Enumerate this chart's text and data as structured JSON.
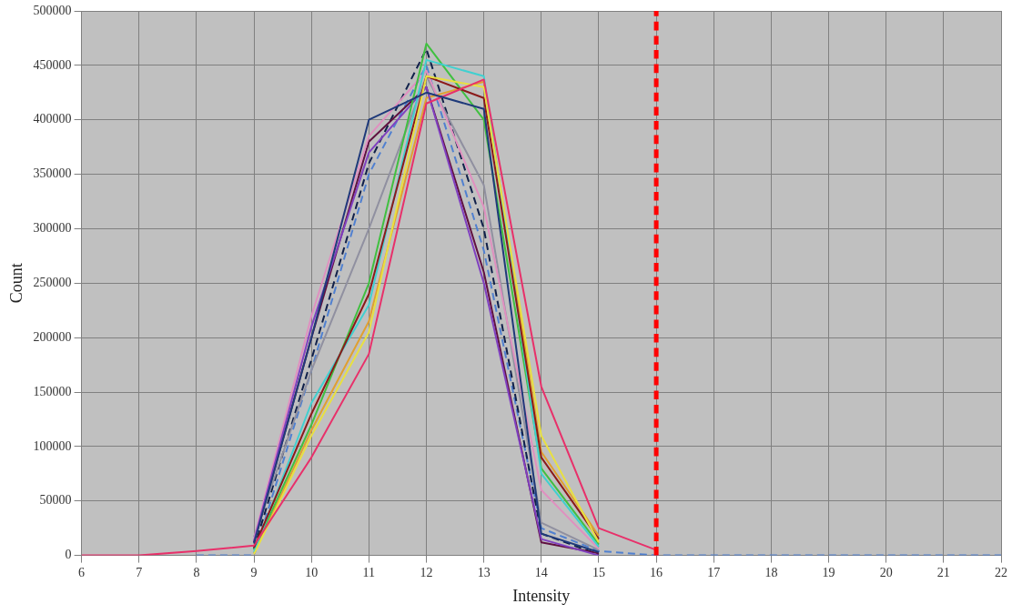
{
  "chart_data": {
    "type": "line",
    "xlabel": "Intensity",
    "ylabel": "Count",
    "x": [
      6,
      7,
      8,
      9,
      10,
      11,
      12,
      13,
      14,
      15,
      16,
      17,
      18,
      19,
      20,
      21,
      22
    ],
    "xlim": [
      6,
      22
    ],
    "xticks": [
      6,
      7,
      8,
      9,
      10,
      11,
      12,
      13,
      14,
      15,
      16,
      17,
      18,
      19,
      20,
      21,
      22
    ],
    "ylim": [
      0,
      500000
    ],
    "yticks": [
      0,
      50000,
      100000,
      150000,
      200000,
      250000,
      300000,
      350000,
      400000,
      450000,
      500000
    ],
    "grid": true,
    "legend": false,
    "marker": "none",
    "series": [
      {
        "color": "#1f3a7a",
        "values": [
          null,
          null,
          null,
          11000,
          200000,
          400000,
          425000,
          410000,
          20000,
          3000,
          null,
          null,
          null,
          null,
          null,
          null,
          null
        ]
      },
      {
        "color": "#e8306a",
        "values": [
          0,
          0,
          4000,
          9000,
          90000,
          185000,
          415000,
          437000,
          155000,
          25000,
          5000,
          null,
          null,
          null,
          null,
          null,
          null
        ]
      },
      {
        "color": "#e8e040",
        "values": [
          null,
          null,
          null,
          1000,
          110000,
          205000,
          440000,
          430000,
          110000,
          12000,
          null,
          null,
          null,
          null,
          null,
          null,
          null
        ]
      },
      {
        "color": "#8b1a1a",
        "values": [
          null,
          null,
          null,
          7000,
          130000,
          240000,
          440000,
          420000,
          90000,
          15000,
          null,
          null,
          null,
          null,
          null,
          null,
          null
        ]
      },
      {
        "color": "#40d0d0",
        "values": [
          null,
          null,
          null,
          3000,
          140000,
          230000,
          455000,
          440000,
          75000,
          8000,
          null,
          null,
          null,
          null,
          null,
          null,
          null
        ]
      },
      {
        "color": "#40c040",
        "values": [
          null,
          null,
          null,
          5000,
          120000,
          250000,
          470000,
          400000,
          80000,
          10000,
          null,
          null,
          null,
          null,
          null,
          null,
          null
        ]
      },
      {
        "color": "#8040c0",
        "values": [
          null,
          null,
          null,
          13000,
          210000,
          370000,
          430000,
          250000,
          15000,
          0,
          null,
          null,
          null,
          null,
          null,
          null,
          null
        ]
      },
      {
        "color": "#e090c0",
        "values": [
          null,
          null,
          null,
          15000,
          220000,
          385000,
          445000,
          320000,
          60000,
          6000,
          null,
          null,
          null,
          null,
          null,
          null,
          null
        ]
      },
      {
        "color": "#e0a030",
        "values": [
          null,
          null,
          null,
          2000,
          115000,
          215000,
          420000,
          435000,
          95000,
          18000,
          null,
          null,
          null,
          null,
          null,
          null,
          null
        ]
      },
      {
        "color": "#9090a0",
        "values": [
          null,
          null,
          null,
          17000,
          170000,
          300000,
          440000,
          340000,
          30000,
          5000,
          null,
          null,
          null,
          null,
          null,
          null,
          null
        ]
      },
      {
        "color": "#601040",
        "values": [
          null,
          null,
          null,
          12000,
          200000,
          380000,
          430000,
          260000,
          12000,
          2000,
          null,
          null,
          null,
          null,
          null,
          null,
          null
        ]
      },
      {
        "color": "#10204a",
        "line_style": "dashed",
        "values": [
          null,
          null,
          null,
          6000,
          180000,
          360000,
          465000,
          300000,
          20000,
          1000,
          null,
          null,
          null,
          null,
          null,
          null,
          null
        ]
      },
      {
        "color": "#5080d0",
        "line_style": "dashed",
        "values": [
          null,
          null,
          0,
          0,
          170000,
          350000,
          450000,
          280000,
          25000,
          4000,
          0,
          0,
          0,
          0,
          0,
          0,
          0
        ]
      }
    ],
    "ref_lines": [
      {
        "axis": "x",
        "value": 16,
        "color": "#ff0000",
        "line_style": "dashed"
      }
    ]
  }
}
